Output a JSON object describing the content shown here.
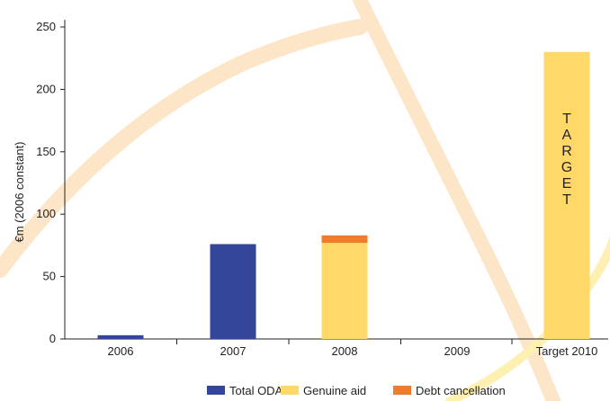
{
  "chart_data": {
    "type": "bar",
    "categories": [
      "2006",
      "2007",
      "2008",
      "2009",
      "Target 2010"
    ],
    "series": [
      {
        "name": "Total ODA",
        "color": "#34469a",
        "values": [
          3,
          76,
          0,
          0,
          0
        ]
      },
      {
        "name": "Genuine aid",
        "color": "#ffd868",
        "values": [
          0,
          0,
          77,
          0,
          230
        ]
      },
      {
        "name": "Debt cancellation",
        "color": "#ef7c2a",
        "values": [
          0,
          0,
          6,
          0,
          0
        ]
      }
    ],
    "stacked": true,
    "ylabel": "€m (2006 constant)",
    "ylim": [
      0,
      250
    ],
    "yticks": [
      "0",
      "50",
      "100",
      "150",
      "200",
      "250"
    ],
    "annotation": "TARGET",
    "grid": false,
    "legend_position": "bottom"
  },
  "background": {
    "arc_color": "#fde5c8"
  }
}
